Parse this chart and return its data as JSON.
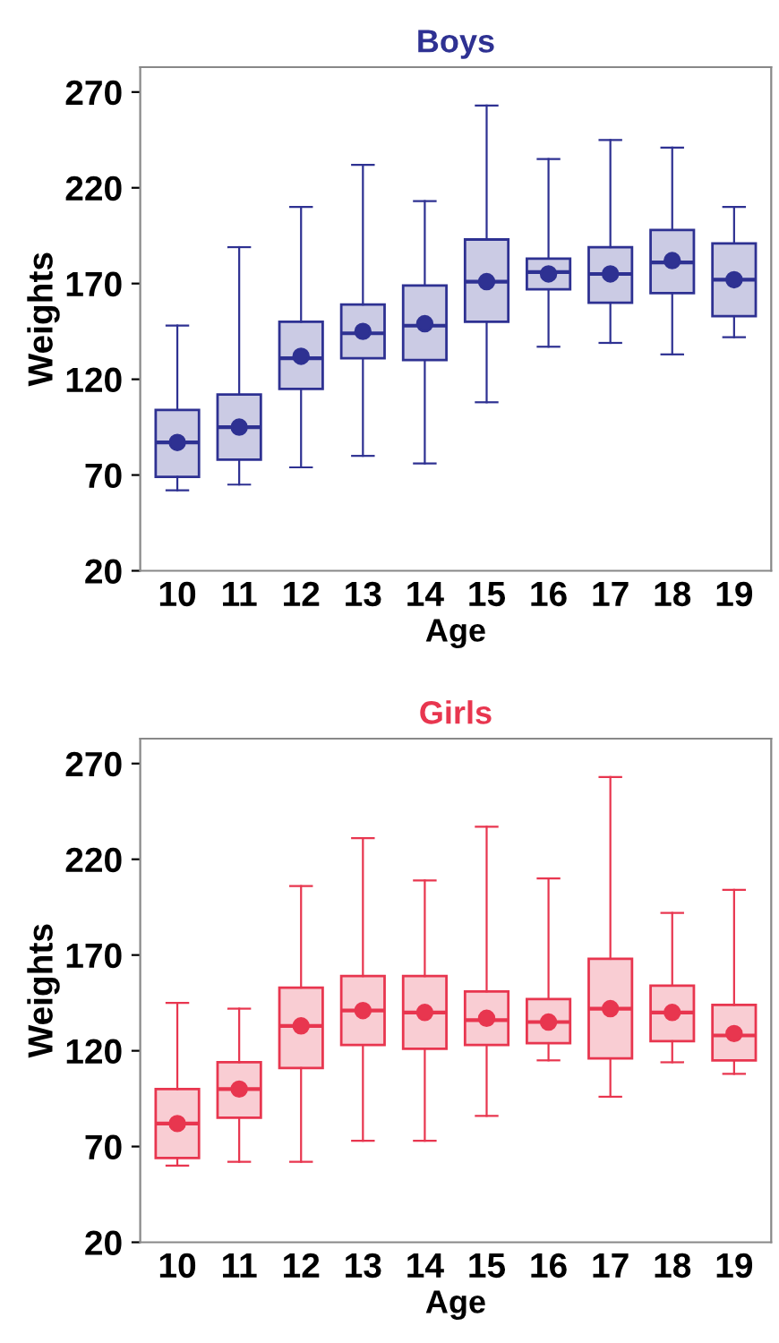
{
  "chart_data": [
    {
      "type": "box",
      "title": "Boys",
      "xlabel": "Age",
      "ylabel": "Weights",
      "categories": [
        "10",
        "11",
        "12",
        "13",
        "14",
        "15",
        "16",
        "17",
        "18",
        "19"
      ],
      "ylim": [
        20,
        283
      ],
      "yticks": [
        20,
        70,
        120,
        170,
        220,
        270
      ],
      "grid": false,
      "legend": false,
      "marker": "circle",
      "series": [
        {
          "color": "#2e3192",
          "boxes": [
            {
              "low": 62,
              "q1": 69,
              "median": 87,
              "q3": 104,
              "high": 148,
              "mean": 87
            },
            {
              "low": 65,
              "q1": 78,
              "median": 95,
              "q3": 112,
              "high": 189,
              "mean": 95
            },
            {
              "low": 74,
              "q1": 115,
              "median": 131,
              "q3": 150,
              "high": 210,
              "mean": 132
            },
            {
              "low": 80,
              "q1": 131,
              "median": 144,
              "q3": 159,
              "high": 232,
              "mean": 145
            },
            {
              "low": 76,
              "q1": 130,
              "median": 148,
              "q3": 169,
              "high": 213,
              "mean": 149
            },
            {
              "low": 108,
              "q1": 150,
              "median": 171,
              "q3": 193,
              "high": 263,
              "mean": 171
            },
            {
              "low": 137,
              "q1": 167,
              "median": 176,
              "q3": 183,
              "high": 235,
              "mean": 175
            },
            {
              "low": 139,
              "q1": 160,
              "median": 175,
              "q3": 189,
              "high": 245,
              "mean": 175
            },
            {
              "low": 133,
              "q1": 165,
              "median": 181,
              "q3": 198,
              "high": 241,
              "mean": 182
            },
            {
              "low": 142,
              "q1": 153,
              "median": 172,
              "q3": 191,
              "high": 210,
              "mean": 172
            }
          ]
        }
      ]
    },
    {
      "type": "box",
      "title": "Girls",
      "xlabel": "Age",
      "ylabel": "Weights",
      "categories": [
        "10",
        "11",
        "12",
        "13",
        "14",
        "15",
        "16",
        "17",
        "18",
        "19"
      ],
      "ylim": [
        20,
        283
      ],
      "yticks": [
        20,
        70,
        120,
        170,
        220,
        270
      ],
      "grid": false,
      "legend": false,
      "marker": "circle",
      "series": [
        {
          "color": "#e8364f",
          "boxes": [
            {
              "low": 60,
              "q1": 64,
              "median": 82,
              "q3": 100,
              "high": 145,
              "mean": 82
            },
            {
              "low": 62,
              "q1": 85,
              "median": 100,
              "q3": 114,
              "high": 142,
              "mean": 100
            },
            {
              "low": 62,
              "q1": 111,
              "median": 133,
              "q3": 153,
              "high": 206,
              "mean": 133
            },
            {
              "low": 73,
              "q1": 123,
              "median": 141,
              "q3": 159,
              "high": 231,
              "mean": 141
            },
            {
              "low": 73,
              "q1": 121,
              "median": 140,
              "q3": 159,
              "high": 209,
              "mean": 140
            },
            {
              "low": 86,
              "q1": 123,
              "median": 136,
              "q3": 151,
              "high": 237,
              "mean": 137
            },
            {
              "low": 115,
              "q1": 124,
              "median": 135,
              "q3": 147,
              "high": 210,
              "mean": 135
            },
            {
              "low": 96,
              "q1": 116,
              "median": 142,
              "q3": 168,
              "high": 263,
              "mean": 142
            },
            {
              "low": 114,
              "q1": 125,
              "median": 140,
              "q3": 154,
              "high": 192,
              "mean": 140
            },
            {
              "low": 108,
              "q1": 115,
              "median": 128,
              "q3": 144,
              "high": 204,
              "mean": 129
            }
          ]
        }
      ]
    }
  ]
}
